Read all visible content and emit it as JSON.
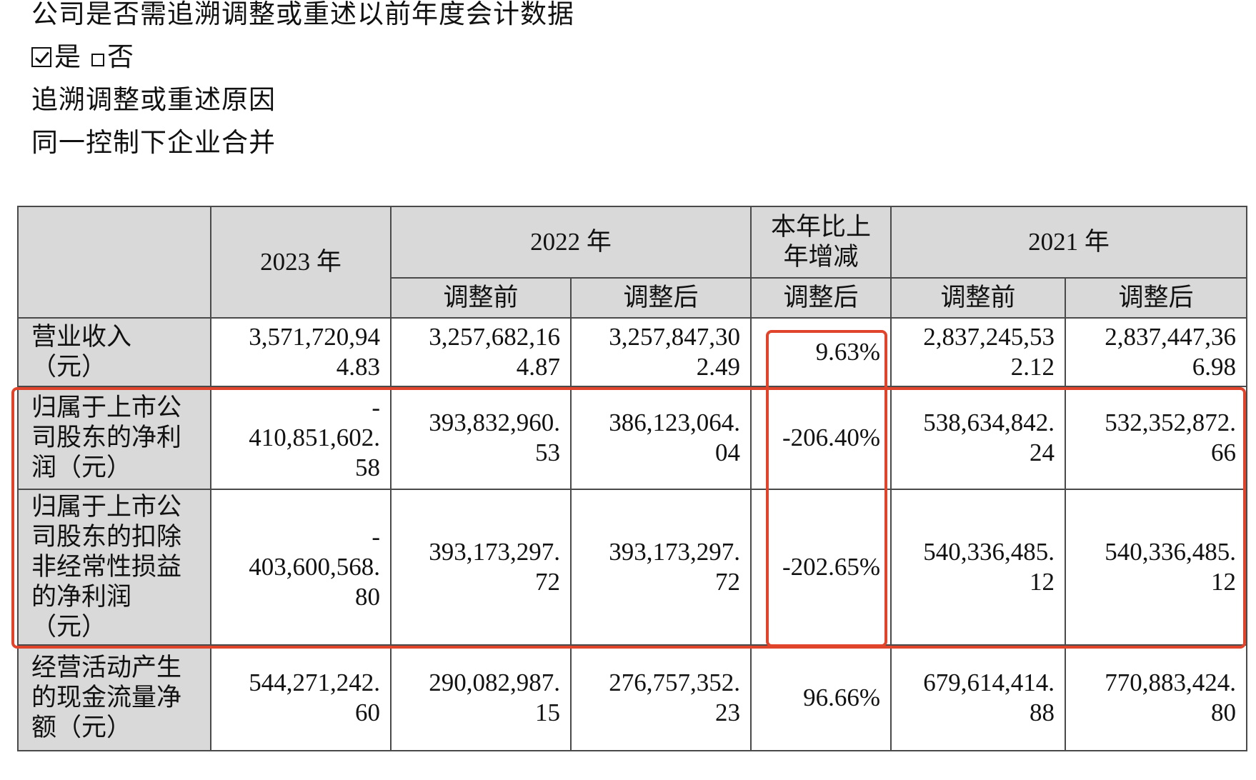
{
  "intro": {
    "question": "公司是否需追溯调整或重述以前年度会计数据",
    "yes_label": "是",
    "no_label": "否",
    "reason_heading": "追溯调整或重述原因",
    "reason_text": "同一控制下企业合并"
  },
  "table": {
    "header": {
      "year_2023": "2023 年",
      "year_2022": "2022 年",
      "change": [
        "本年比上",
        "年增减"
      ],
      "year_2021": "2021 年",
      "before_adj": "调整前",
      "after_adj": "调整后"
    },
    "rows": [
      {
        "label": [
          "营业收入",
          "（元）"
        ],
        "v2023": [
          "3,571,720,94",
          "4.83"
        ],
        "v2022_before": [
          "3,257,682,16",
          "4.87"
        ],
        "v2022_after": [
          "3,257,847,30",
          "2.49"
        ],
        "change": "9.63%",
        "v2021_before": [
          "2,837,245,53",
          "2.12"
        ],
        "v2021_after": [
          "2,837,447,36",
          "6.98"
        ]
      },
      {
        "label": [
          "归属于上市公",
          "司股东的净利",
          "润（元）"
        ],
        "v2023": [
          "-",
          "410,851,602.",
          "58"
        ],
        "v2022_before": [
          "393,832,960.",
          "53"
        ],
        "v2022_after": [
          "386,123,064.",
          "04"
        ],
        "change": "-206.40%",
        "v2021_before": [
          "538,634,842.",
          "24"
        ],
        "v2021_after": [
          "532,352,872.",
          "66"
        ]
      },
      {
        "label": [
          "归属于上市公",
          "司股东的扣除",
          "非经常性损益",
          "的净利润",
          "（元）"
        ],
        "v2023": [
          "-",
          "403,600,568.",
          "80"
        ],
        "v2022_before": [
          "393,173,297.",
          "72"
        ],
        "v2022_after": [
          "393,173,297.",
          "72"
        ],
        "change": "-202.65%",
        "v2021_before": [
          "540,336,485.",
          "12"
        ],
        "v2021_after": [
          "540,336,485.",
          "12"
        ]
      },
      {
        "label": [
          "经营活动产生",
          "的现金流量净",
          "额（元）"
        ],
        "v2023": [
          "544,271,242.",
          "60"
        ],
        "v2022_before": [
          "290,082,987.",
          "15"
        ],
        "v2022_after": [
          "276,757,352.",
          "23"
        ],
        "change": "96.66%",
        "v2021_before": [
          "679,614,414.",
          "88"
        ],
        "v2021_after": [
          "770,883,424.",
          "80"
        ]
      }
    ]
  },
  "highlight_color": "#e0442a"
}
